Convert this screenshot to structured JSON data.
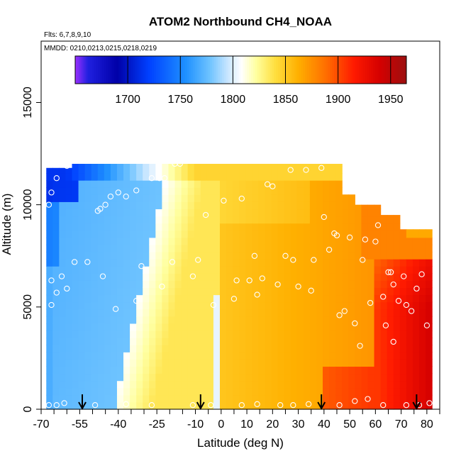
{
  "chart_data": {
    "type": "heatmap",
    "title": "ATOM2 Northbound CH4_NOAA",
    "flights_label": "Flts: 6,7,8,9,10",
    "dates_label": "MMDD: 0210,0213,0215,0218,0219",
    "xlabel": "Latitude (deg N)",
    "ylabel": "Altitude (m)",
    "xlim": [
      -70,
      85
    ],
    "ylim": [
      0,
      18000
    ],
    "x_ticks": [
      -70,
      -55,
      -40,
      -25,
      -10,
      0,
      10,
      20,
      30,
      40,
      50,
      60,
      70,
      80
    ],
    "x_tick_labels": [
      "-70",
      "-55",
      "-40",
      "-25",
      "-10",
      "0",
      "10",
      "20",
      "30",
      "40",
      "50",
      "60",
      "70",
      "80"
    ],
    "x_minor_ticks": [
      -65,
      -60,
      -50,
      -45,
      -35,
      -30,
      -20,
      -15,
      -5,
      5,
      15,
      25,
      35,
      45,
      55,
      65,
      75,
      85
    ],
    "y_ticks": [
      0,
      5000,
      10000,
      15000
    ],
    "y_tick_labels": [
      "0",
      "5000",
      "10000",
      "15000"
    ],
    "colorbar": {
      "range": [
        1650,
        1965
      ],
      "ticks": [
        1700,
        1750,
        1800,
        1850,
        1900,
        1950
      ],
      "tick_labels": [
        "1700",
        "1750",
        "1800",
        "1850",
        "1900",
        "1950"
      ],
      "colors": [
        {
          "v": 1650,
          "c": "#9b30ff"
        },
        {
          "v": 1662,
          "c": "#2020e0"
        },
        {
          "v": 1690,
          "c": "#0000a8"
        },
        {
          "v": 1720,
          "c": "#0040ff"
        },
        {
          "v": 1755,
          "c": "#1e90ff"
        },
        {
          "v": 1778,
          "c": "#6ec3ff"
        },
        {
          "v": 1795,
          "c": "#c8e6ff"
        },
        {
          "v": 1808,
          "c": "#ffffff"
        },
        {
          "v": 1822,
          "c": "#ffffa0"
        },
        {
          "v": 1840,
          "c": "#ffdf40"
        },
        {
          "v": 1862,
          "c": "#ffb000"
        },
        {
          "v": 1890,
          "c": "#ff6a00"
        },
        {
          "v": 1915,
          "c": "#ff1a00"
        },
        {
          "v": 1940,
          "c": "#d40000"
        },
        {
          "v": 1965,
          "c": "#9b1010"
        }
      ]
    },
    "surface_arrows_lat": [
      -54,
      -8,
      39,
      76
    ]
  }
}
